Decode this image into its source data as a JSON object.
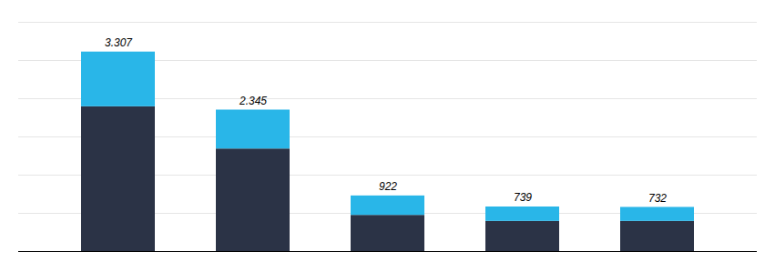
{
  "chart_data": {
    "type": "bar",
    "stacked": true,
    "categories": [
      null,
      null,
      null,
      null,
      null
    ],
    "series": [
      {
        "color": "#2b3346",
        "values": [
          2400,
          1700,
          600,
          500,
          500
        ]
      },
      {
        "color": "#29b6e8",
        "values": [
          907,
          645,
          322,
          239,
          232
        ]
      }
    ],
    "totals": [
      3307,
      2345,
      922,
      739,
      732
    ],
    "value_labels": [
      "3.307",
      "2.345",
      "922",
      "739",
      "732"
    ],
    "data_labels": true,
    "ylim": [
      0,
      3800
    ],
    "yticks": [
      0,
      633.3333333333334,
      1266.6666666666667,
      1900,
      2533.3333333333335,
      3166.6666666666665,
      3800
    ],
    "grid": true,
    "tick_labels": false
  }
}
